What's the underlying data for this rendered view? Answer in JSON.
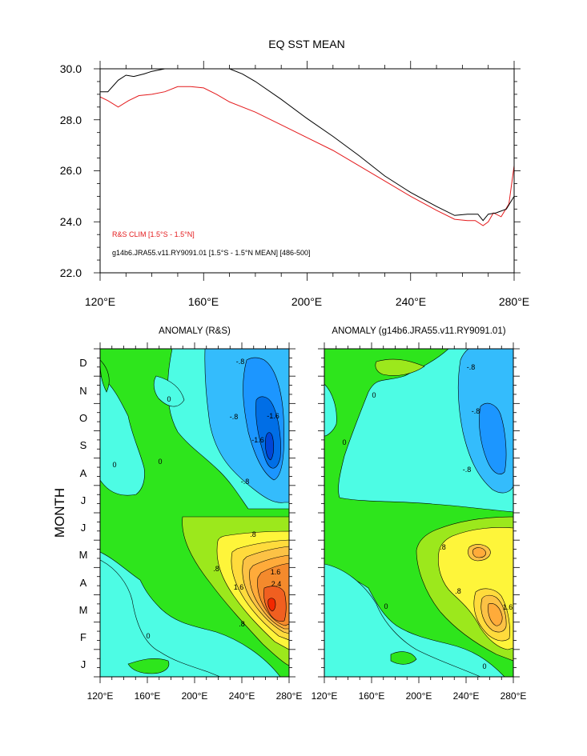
{
  "top_panel": {
    "title": "EQ SST MEAN",
    "legend": {
      "rs": {
        "label": "R&S CLIM [1.5°S - 1.5°N]",
        "color": "#e41a1c"
      },
      "model": {
        "label": "g14b6.JRA55.v11.RY9091.01 [1.5°S - 1.5°N MEAN] [486-500]",
        "color": "#000000"
      }
    },
    "xticks": [
      "120°E",
      "160°E",
      "200°E",
      "240°E",
      "280°E"
    ],
    "yticks": [
      "30.0",
      "28.0",
      "26.0",
      "24.0",
      "22.0"
    ]
  },
  "bottom_panels": {
    "left_title": "ANOMALY (R&S)",
    "right_title": "ANOMALY (g14b6.JRA55.v11.RY9091.01)",
    "ylabel": "MONTH",
    "months": [
      "D",
      "N",
      "O",
      "S",
      "A",
      "J",
      "J",
      "M",
      "A",
      "M",
      "F",
      "J"
    ],
    "xticks": [
      "120°E",
      "160°E",
      "200°E",
      "240°E",
      "280°E"
    ],
    "contour_labels_left": [
      "-.8",
      "-.8",
      "-1.6",
      "-1.6",
      "-.8",
      "0",
      "0",
      "0",
      ".8",
      ".8",
      "1.6",
      "1.6",
      "2.4",
      ".8",
      "0"
    ],
    "contour_labels_right": [
      "-.8",
      "-.8",
      "-.8",
      "0",
      "0",
      ".8",
      ".8",
      "1.6",
      "0",
      "0"
    ]
  },
  "chart_data": [
    {
      "type": "line",
      "title": "EQ SST MEAN",
      "xlabel": "",
      "ylabel": "",
      "xlim": [
        120,
        280
      ],
      "ylim": [
        22,
        30
      ],
      "grid": false,
      "legend_position": "bottom-left",
      "series": [
        {
          "name": "R&S CLIM [1.5°S - 1.5°N]",
          "color": "#e41a1c",
          "x": [
            120,
            123,
            127,
            131,
            135,
            140,
            145,
            150,
            155,
            160,
            165,
            170,
            180,
            190,
            200,
            210,
            220,
            230,
            240,
            250,
            257,
            262,
            265,
            268,
            270,
            272,
            275,
            278,
            280
          ],
          "y": [
            28.9,
            28.75,
            28.5,
            28.75,
            28.95,
            29.0,
            29.1,
            29.3,
            29.3,
            29.25,
            29.0,
            28.7,
            28.3,
            27.8,
            27.3,
            26.8,
            26.2,
            25.6,
            25.0,
            24.45,
            24.1,
            24.05,
            24.05,
            23.85,
            24.0,
            24.35,
            24.2,
            24.7,
            26.2
          ]
        },
        {
          "name": "g14b6.JRA55.v11.RY9091.01 [1.5°S - 1.5°N MEAN] [486-500]",
          "color": "#000000",
          "x": [
            120,
            123,
            127,
            130,
            133,
            137,
            140,
            145,
            150,
            160,
            170,
            175,
            180,
            190,
            200,
            210,
            220,
            230,
            240,
            250,
            257,
            262,
            266,
            268,
            270,
            273,
            277,
            280
          ],
          "y": [
            29.1,
            29.1,
            29.55,
            29.75,
            29.7,
            29.8,
            29.9,
            30.0,
            30.0,
            30.0,
            30.0,
            29.8,
            29.5,
            28.8,
            28.05,
            27.35,
            26.6,
            25.8,
            25.15,
            24.6,
            24.25,
            24.3,
            24.3,
            24.05,
            24.3,
            24.35,
            24.5,
            25.0
          ]
        }
      ]
    },
    {
      "type": "heatmap",
      "title": "ANOMALY (R&S)",
      "xlabel": "",
      "ylabel": "MONTH",
      "xlim": [
        120,
        280
      ],
      "x_ticks": [
        120,
        160,
        200,
        240,
        280
      ],
      "y_categories": [
        "J",
        "F",
        "M",
        "A",
        "M",
        "J",
        "J",
        "A",
        "S",
        "O",
        "N",
        "D"
      ],
      "contour_levels": [
        -2.4,
        -2.0,
        -1.6,
        -1.2,
        -0.8,
        -0.4,
        0,
        0.4,
        0.8,
        1.2,
        1.6,
        2.0,
        2.4,
        2.8
      ],
      "features": [
        {
          "name": "cold anomaly",
          "lon": 262,
          "month": "Sep",
          "min": -2.0
        },
        {
          "name": "warm anomaly",
          "lon": 262,
          "month": "Mar",
          "max": 2.8
        }
      ]
    },
    {
      "type": "heatmap",
      "title": "ANOMALY (g14b6.JRA55.v11.RY9091.01)",
      "xlabel": "",
      "ylabel": "",
      "xlim": [
        120,
        280
      ],
      "x_ticks": [
        120,
        160,
        200,
        240,
        280
      ],
      "y_categories": [
        "J",
        "F",
        "M",
        "A",
        "M",
        "J",
        "J",
        "A",
        "S",
        "O",
        "N",
        "D"
      ],
      "contour_levels": [
        -2.4,
        -2.0,
        -1.6,
        -1.2,
        -0.8,
        -0.4,
        0,
        0.4,
        0.8,
        1.2,
        1.6,
        2.0,
        2.4,
        2.8
      ],
      "features": [
        {
          "name": "cold anomaly",
          "lon": 262,
          "month": "Sep",
          "min": -1.6
        },
        {
          "name": "warm anomaly",
          "lon": 250,
          "month": "May",
          "max": 1.6
        },
        {
          "name": "warm anomaly",
          "lon": 262,
          "month": "Mar",
          "max": 1.6
        }
      ]
    }
  ]
}
